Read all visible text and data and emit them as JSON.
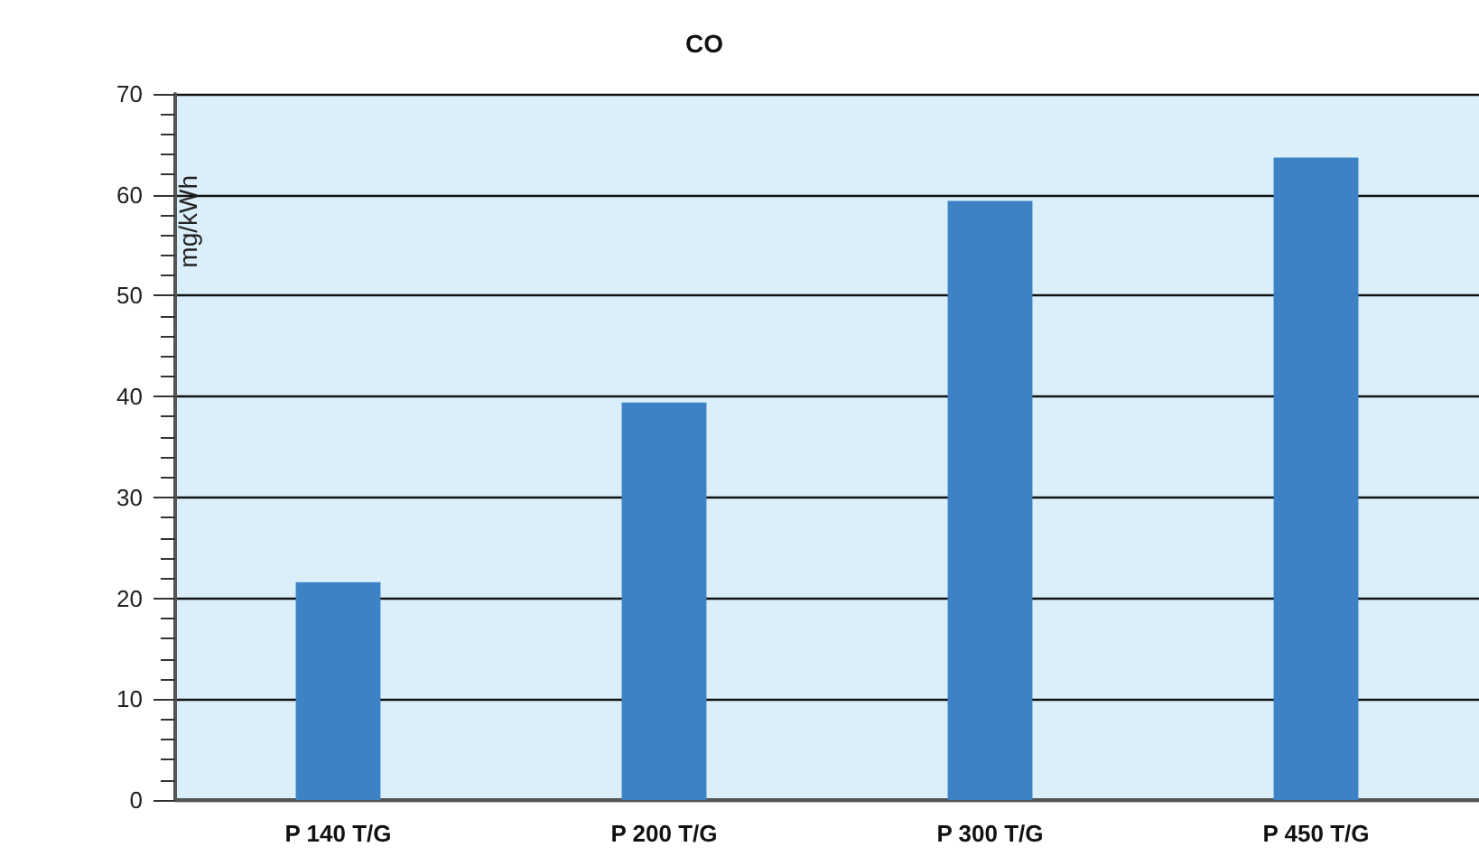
{
  "chart_data": {
    "type": "bar",
    "title": "CO",
    "ylabel": "mg/kWh",
    "categories": [
      "P 140 T/G",
      "P 200 T/G",
      "P 300 T/G",
      "P 450 T/G"
    ],
    "values": [
      21.6,
      39.4,
      59.4,
      63.7
    ],
    "color": "#3d82c4",
    "ylim": [
      0,
      70
    ],
    "yticks": [
      0,
      10,
      20,
      30,
      40,
      50,
      60,
      70
    ],
    "grid": "y"
  }
}
